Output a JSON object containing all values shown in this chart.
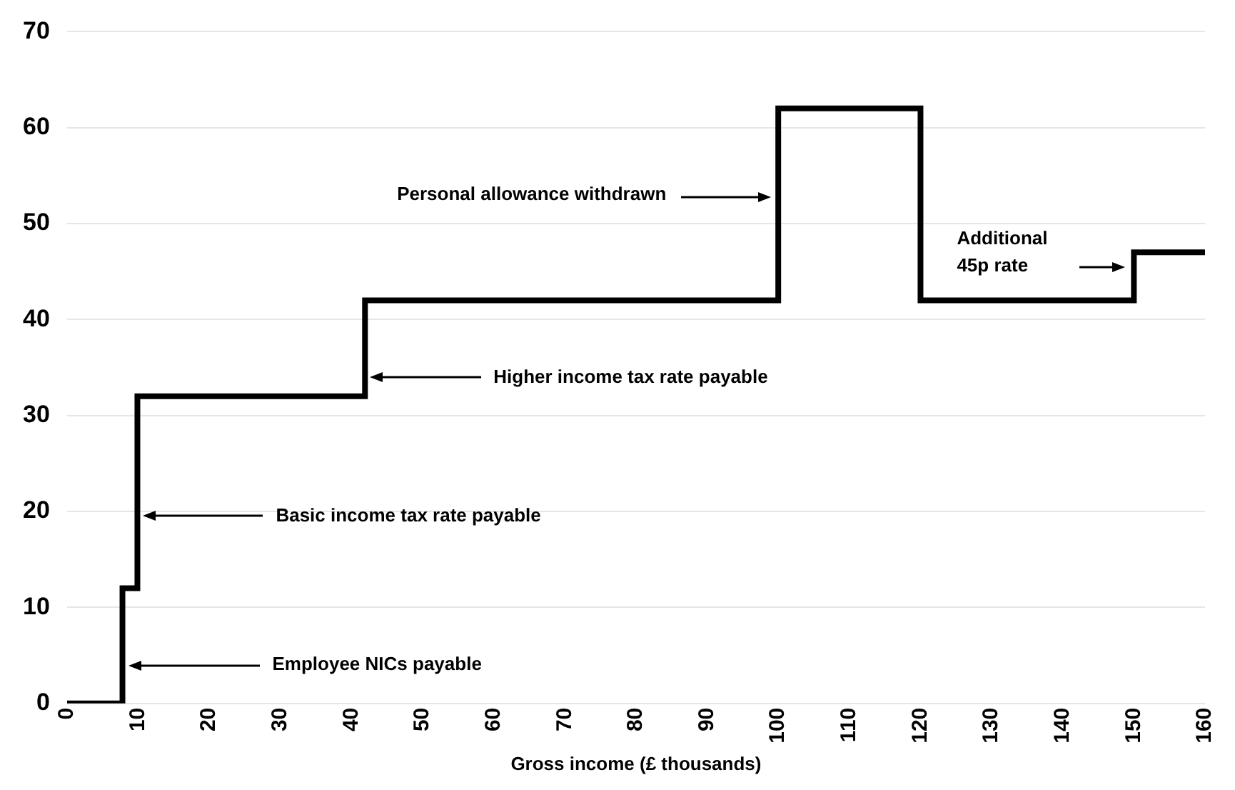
{
  "chart_data": {
    "type": "step",
    "xlabel": "Gross income (£ thousands)",
    "x": [
      0,
      7.8,
      9.9,
      41.9,
      100,
      120,
      150,
      160
    ],
    "series": [
      {
        "color": "#000000",
        "values": [
          0,
          12,
          32,
          42,
          62,
          42,
          47,
          47
        ]
      }
    ],
    "xlim": [
      0,
      160
    ],
    "xticks": [
      0,
      10,
      20,
      30,
      40,
      50,
      60,
      70,
      80,
      90,
      100,
      110,
      120,
      130,
      140,
      150,
      160
    ],
    "ylim": [
      0,
      70
    ],
    "yticks": [
      0,
      10,
      20,
      30,
      40,
      50,
      60,
      70
    ],
    "grid": "y",
    "legend": false,
    "marker": "none",
    "line_style": "solid",
    "annotations": [
      "Employee NICs payable",
      "Basic income tax rate payable",
      "Higher income tax rate payable",
      "Personal allowance withdrawn",
      "Additional 45p rate"
    ]
  }
}
